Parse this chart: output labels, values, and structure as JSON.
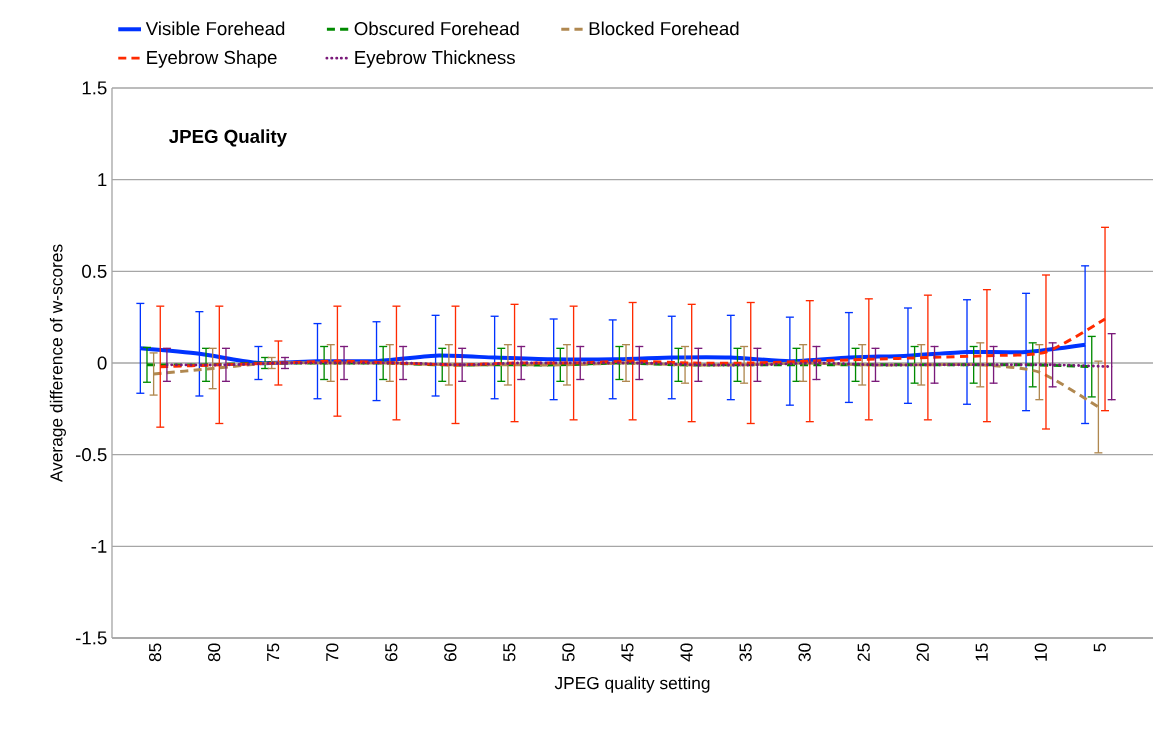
{
  "chart_data": {
    "type": "line",
    "title": "JPEG Quality",
    "xlabel": "JPEG quality setting",
    "ylabel": "Average difference of w-scores",
    "categories": [
      "85",
      "80",
      "75",
      "70",
      "65",
      "60",
      "55",
      "50",
      "45",
      "40",
      "35",
      "30",
      "25",
      "20",
      "15",
      "10",
      "5"
    ],
    "series": [
      {
        "name": "Visible Forehead",
        "color": "#0033ff",
        "line_style": "solid",
        "values": [
          0.08,
          0.05,
          0.0,
          0.01,
          0.01,
          0.04,
          0.03,
          0.02,
          0.02,
          0.03,
          0.03,
          0.01,
          0.03,
          0.04,
          0.06,
          0.06,
          0.1
        ],
        "errors": [
          0.245,
          0.23,
          0.09,
          0.205,
          0.215,
          0.22,
          0.225,
          0.22,
          0.215,
          0.225,
          0.23,
          0.24,
          0.245,
          0.26,
          0.285,
          0.32,
          0.43
        ]
      },
      {
        "name": "Obscured Forehead",
        "color": "#008a00",
        "line_style": "dashed",
        "values": [
          -0.01,
          -0.01,
          0.0,
          0.0,
          0.0,
          -0.01,
          -0.01,
          -0.01,
          0.0,
          -0.01,
          -0.01,
          -0.01,
          -0.01,
          -0.01,
          -0.01,
          -0.01,
          -0.02
        ],
        "errors": [
          0.095,
          0.09,
          0.03,
          0.09,
          0.09,
          0.09,
          0.09,
          0.09,
          0.09,
          0.09,
          0.09,
          0.09,
          0.09,
          0.1,
          0.1,
          0.12,
          0.165
        ]
      },
      {
        "name": "Blocked Forehead",
        "color": "#b08850",
        "line_style": "dashed",
        "values": [
          -0.06,
          -0.03,
          0.0,
          0.0,
          0.0,
          -0.01,
          -0.01,
          -0.01,
          0.0,
          -0.01,
          -0.01,
          0.0,
          -0.01,
          -0.01,
          -0.01,
          -0.05,
          -0.24
        ],
        "errors": [
          0.115,
          0.11,
          0.03,
          0.1,
          0.1,
          0.11,
          0.11,
          0.11,
          0.1,
          0.1,
          0.1,
          0.1,
          0.11,
          0.11,
          0.12,
          0.15,
          0.25
        ]
      },
      {
        "name": "Eyebrow Shape",
        "color": "#ff2a00",
        "line_style": "dashed",
        "values": [
          -0.02,
          -0.01,
          0.0,
          0.01,
          0.0,
          -0.01,
          0.0,
          0.0,
          0.01,
          0.0,
          0.0,
          0.01,
          0.02,
          0.03,
          0.04,
          0.06,
          0.24
        ],
        "errors": [
          0.33,
          0.32,
          0.12,
          0.3,
          0.31,
          0.32,
          0.32,
          0.31,
          0.32,
          0.32,
          0.33,
          0.33,
          0.33,
          0.34,
          0.36,
          0.42,
          0.5
        ]
      },
      {
        "name": "Eyebrow Thickness",
        "color": "#7a1a7a",
        "line_style": "dotted",
        "values": [
          -0.01,
          -0.01,
          0.0,
          0.0,
          0.0,
          -0.01,
          0.0,
          0.0,
          0.0,
          -0.01,
          -0.01,
          0.0,
          -0.01,
          -0.01,
          -0.01,
          -0.01,
          -0.02
        ],
        "errors": [
          0.09,
          0.09,
          0.03,
          0.09,
          0.09,
          0.09,
          0.09,
          0.09,
          0.09,
          0.09,
          0.09,
          0.09,
          0.09,
          0.1,
          0.1,
          0.12,
          0.18
        ]
      }
    ],
    "ylim": [
      -1.5,
      1.5
    ],
    "yticks": [
      -1.5,
      -1,
      -0.5,
      0,
      0.5,
      1,
      1.5
    ],
    "grid": "y",
    "legend": "top",
    "marker": "none"
  }
}
